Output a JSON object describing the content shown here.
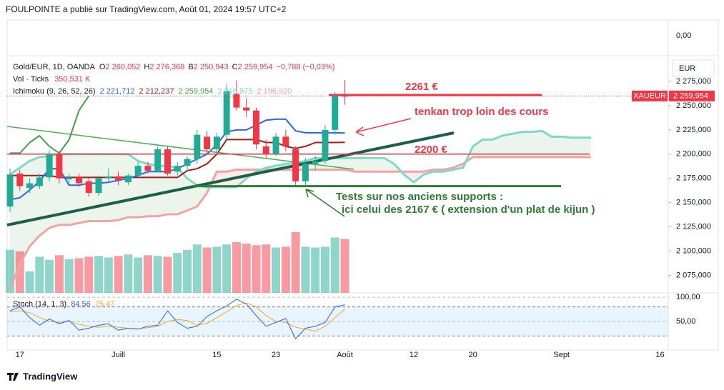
{
  "chart_data": {
    "type": "candlestick",
    "header": "FOULPOINTE a publié sur TradingView.com, Août 01, 2024 19:57 UTC+2",
    "branding": "TradingView",
    "currency": "EUR",
    "symbol_tag": "XAUEUR",
    "top_panel_label": "0,00",
    "legend": {
      "symbol": "Gold/EUR, 1D, OANDA",
      "ohlc": [
        {
          "key": "O",
          "value": "2 260,052"
        },
        {
          "key": "H",
          "value": "2 276,368"
        },
        {
          "key": "B",
          "value": "2 250,943"
        },
        {
          "key": "C",
          "value": "2 259,954"
        }
      ],
      "change": "−0,788 (−0,03%)",
      "volume_label": "Vol · Ticks",
      "volume_value": "350,531 K",
      "ichimoku_label": "Ichimoku (9, 26, 52, 26)",
      "ichimoku_values": [
        "2 221,712",
        "2 212,237",
        "2 259,954",
        "2 216,975",
        "2 196,920"
      ]
    },
    "x": [
      "2024-06-14",
      "2024-06-17",
      "2024-06-18",
      "2024-06-19",
      "2024-06-20",
      "2024-06-21",
      "2024-06-24",
      "2024-06-25",
      "2024-06-26",
      "2024-06-27",
      "2024-06-28",
      "2024-07-01",
      "2024-07-02",
      "2024-07-03",
      "2024-07-04",
      "2024-07-05",
      "2024-07-08",
      "2024-07-09",
      "2024-07-10",
      "2024-07-11",
      "2024-07-12",
      "2024-07-15",
      "2024-07-16",
      "2024-07-17",
      "2024-07-18",
      "2024-07-19",
      "2024-07-22",
      "2024-07-23",
      "2024-07-24",
      "2024-07-25",
      "2024-07-26",
      "2024-07-29",
      "2024-07-30",
      "2024-07-31",
      "2024-08-01"
    ],
    "open": [
      2146,
      2180,
      2165,
      2167,
      2176,
      2200,
      2174,
      2176,
      2172,
      2160,
      2175,
      2177,
      2171,
      2178,
      2188,
      2183,
      2205,
      2182,
      2188,
      2195,
      2218,
      2205,
      2220,
      2262,
      2248,
      2245,
      2208,
      2200,
      2218,
      2205,
      2172,
      2190,
      2193,
      2225,
      2260.052
    ],
    "high": [
      2185,
      2184,
      2175,
      2180,
      2204,
      2203,
      2180,
      2180,
      2175,
      2178,
      2185,
      2182,
      2180,
      2192,
      2192,
      2208,
      2208,
      2192,
      2198,
      2225,
      2224,
      2222,
      2272,
      2276,
      2258,
      2248,
      2215,
      2222,
      2225,
      2208,
      2196,
      2198,
      2230,
      2264,
      2276.368
    ],
    "low": [
      2140,
      2162,
      2160,
      2164,
      2172,
      2170,
      2170,
      2166,
      2156,
      2157,
      2172,
      2168,
      2168,
      2176,
      2180,
      2181,
      2178,
      2178,
      2183,
      2190,
      2200,
      2200,
      2215,
      2245,
      2238,
      2205,
      2195,
      2198,
      2203,
      2168,
      2168,
      2184,
      2190,
      2220,
      2250.943
    ],
    "close": [
      2179,
      2167,
      2170,
      2176,
      2200,
      2175,
      2176,
      2170,
      2160,
      2175,
      2177,
      2173,
      2178,
      2188,
      2183,
      2205,
      2180,
      2188,
      2195,
      2220,
      2205,
      2218,
      2265,
      2248,
      2245,
      2210,
      2200,
      2218,
      2208,
      2172,
      2190,
      2193,
      2225,
      2260,
      2259.954
    ],
    "volume": [
      280,
      270,
      140,
      235,
      215,
      245,
      220,
      225,
      235,
      240,
      230,
      240,
      250,
      230,
      245,
      240,
      235,
      260,
      280,
      315,
      295,
      300,
      315,
      330,
      320,
      310,
      315,
      295,
      300,
      395,
      300,
      295,
      300,
      360,
      350.531
    ],
    "up_color": "#22ab94",
    "down_color": "#f23645",
    "ylim": [
      2057,
      2300
    ],
    "yticks": [
      {
        "value": 2275,
        "label": "2 275,000"
      },
      {
        "value": 2250,
        "label": "2 250,000"
      },
      {
        "value": 2225,
        "label": "2 225,000"
      },
      {
        "value": 2200,
        "label": "2 200,000"
      },
      {
        "value": 2175,
        "label": "2 175,000"
      },
      {
        "value": 2150,
        "label": "2 150,000"
      },
      {
        "value": 2125,
        "label": "2 125,000"
      },
      {
        "value": 2100,
        "label": "2 100,000"
      },
      {
        "value": 2075,
        "label": "2 075,000"
      }
    ],
    "xticks": [
      {
        "value": "2024-06-17",
        "label": "17"
      },
      {
        "value": "2024-07-01",
        "label": "Juill"
      },
      {
        "value": "2024-07-15",
        "label": "15"
      },
      {
        "value": "2024-07-23",
        "label": "23"
      },
      {
        "value": "2024-08-01",
        "label": "Août"
      },
      {
        "value": "2024-08-12",
        "label": "12"
      },
      {
        "value": "2024-08-20",
        "label": "20"
      },
      {
        "value": "2024-09-02",
        "label": "Sept"
      },
      {
        "value": "2024-09-16",
        "label": "16"
      }
    ],
    "grid": false,
    "ichimoku": {
      "x": [
        "2024-06-14",
        "2024-06-17",
        "2024-06-18",
        "2024-06-19",
        "2024-06-20",
        "2024-06-21",
        "2024-06-24",
        "2024-06-25",
        "2024-06-26",
        "2024-06-27",
        "2024-06-28",
        "2024-07-01",
        "2024-07-02",
        "2024-07-03",
        "2024-07-04",
        "2024-07-05",
        "2024-07-08",
        "2024-07-09",
        "2024-07-10",
        "2024-07-11",
        "2024-07-12",
        "2024-07-15",
        "2024-07-16",
        "2024-07-17",
        "2024-07-18",
        "2024-07-19",
        "2024-07-22",
        "2024-07-23",
        "2024-07-24",
        "2024-07-25",
        "2024-07-26",
        "2024-07-29",
        "2024-07-30",
        "2024-07-31",
        "2024-08-01",
        "2024-08-02",
        "2024-08-05",
        "2024-08-06",
        "2024-08-07",
        "2024-08-08",
        "2024-08-09",
        "2024-08-12",
        "2024-08-13",
        "2024-08-14",
        "2024-08-15",
        "2024-08-16",
        "2024-08-19",
        "2024-08-20",
        "2024-08-21",
        "2024-08-22",
        "2024-08-23",
        "2024-08-26",
        "2024-08-27",
        "2024-08-28",
        "2024-08-29",
        "2024-08-30",
        "2024-09-02",
        "2024-09-03",
        "2024-09-04",
        "2024-09-05"
      ],
      "lines": [
        {
          "color": "#2962ff",
          "width": 2,
          "values": [
            2153,
            2155,
            2163,
            2172,
            2185,
            2185,
            2168,
            2168,
            2170,
            2170,
            2171,
            2173,
            2175,
            2178,
            2182,
            2182,
            2182,
            2185,
            2190,
            2195,
            2200,
            2210,
            2223,
            2225,
            2225,
            2230,
            2235,
            2236,
            2236,
            2224,
            2222,
            2222,
            2222,
            2222,
            2221.712,
            null,
            null,
            null,
            null,
            null,
            null,
            null,
            null,
            null,
            null,
            null,
            null,
            null,
            null,
            null,
            null,
            null,
            null,
            null,
            null,
            null,
            null,
            null,
            null,
            null
          ]
        },
        {
          "color": "#a31d1d",
          "width": 2,
          "values": [
            2178,
            2178,
            2178,
            2178,
            2178,
            2176,
            2176,
            2176,
            2176,
            2176,
            2176,
            2176,
            2176,
            2176,
            2176,
            2176,
            2176,
            2176,
            2183,
            2185,
            2190,
            2200,
            2215,
            2215,
            2215,
            2215,
            2212,
            2212,
            2208,
            2206,
            2208,
            2212,
            2212,
            2212,
            2212.237,
            null,
            null,
            null,
            null,
            null,
            null,
            null,
            null,
            null,
            null,
            null,
            null,
            null,
            null,
            null,
            null,
            null,
            null,
            null,
            null,
            null,
            null,
            null,
            null,
            null
          ]
        },
        {
          "color": "#43a047",
          "width": 2,
          "values": [
            2201,
            2201,
            2212,
            2219,
            2208,
            2201,
            2215,
            2245,
            2259.954,
            null,
            null,
            null,
            null,
            null,
            null,
            null,
            null,
            null,
            null,
            null,
            null,
            null,
            null,
            null,
            null,
            null,
            null,
            null,
            null,
            null,
            null,
            null,
            null,
            null,
            null,
            null,
            null,
            null,
            null,
            null,
            null,
            null,
            null,
            null,
            null,
            null,
            null,
            null,
            null,
            null,
            null,
            null,
            null,
            null,
            null,
            null,
            null,
            null,
            null,
            null
          ]
        },
        {
          "color": "#7fd8c9",
          "width": 3,
          "values": [
            2179,
            2186,
            2193,
            2197,
            2198,
            2200,
            2200,
            2200,
            2200,
            2200,
            2200,
            2200,
            2200,
            2193,
            2190,
            2188,
            2188,
            2186,
            2175,
            2168,
            2166,
            2166,
            2166,
            2166,
            2175,
            2182,
            2186,
            2188,
            2190,
            2191,
            2193,
            2196,
            2196,
            2196,
            2196,
            2196,
            2196,
            2196,
            2196,
            2190,
            2179,
            2171,
            2179,
            2182,
            2182,
            2184,
            2186,
            2208,
            2215,
            2215,
            2219,
            2221,
            2223,
            2223,
            2224,
            2218,
            2218,
            2217,
            2217,
            2216.975
          ]
        },
        {
          "color": "#f2a3a3",
          "width": 3,
          "values": [
            2061,
            2087,
            2105,
            2116,
            2124,
            2127,
            2127,
            2129,
            2131,
            2131,
            2131,
            2132,
            2135,
            2135,
            2136,
            2136,
            2138,
            2138,
            2142,
            2146,
            2160,
            2182,
            2182,
            2184,
            2184,
            2184,
            2184,
            2184,
            2184,
            2184,
            2184,
            2184,
            2184,
            2184,
            2184,
            2182,
            2182,
            2182,
            2182,
            2182,
            2182,
            2182,
            2182,
            2184,
            2184,
            2186,
            2190,
            2197,
            2197,
            2197,
            2197,
            2197,
            2197,
            2197,
            2197,
            2197,
            2197,
            2197,
            2197,
            2196.92
          ]
        }
      ],
      "cloud_up_color": "rgba(67,160,71,0.10)",
      "cloud_down_color": "rgba(244,67,54,0.10)"
    },
    "stoch": {
      "label": "Stoch (14, 1, 3)",
      "k_label": "84,56",
      "d_label": "75,47",
      "ylim": [
        -9,
        109
      ],
      "yticks": [
        {
          "value": 100,
          "label": "100,00"
        },
        {
          "value": 50,
          "label": "50,00"
        }
      ],
      "band": [
        20,
        80
      ],
      "band_color": "rgba(33,150,243,0.10)",
      "k": {
        "color": "#2962ff",
        "values": [
          72,
          80,
          58,
          42,
          55,
          45,
          52,
          32,
          36,
          42,
          45,
          32,
          36,
          34,
          40,
          42,
          72,
          48,
          36,
          40,
          60,
          72,
          82,
          96,
          86,
          62,
          40,
          48,
          56,
          14,
          36,
          40,
          48,
          80,
          84.56
        ]
      },
      "d": {
        "color": "#f5a623",
        "values": [
          70,
          72,
          68,
          58,
          50,
          48,
          50,
          44,
          40,
          38,
          40,
          38,
          36,
          35,
          37,
          40,
          50,
          54,
          52,
          42,
          46,
          58,
          70,
          83,
          88,
          80,
          62,
          50,
          48,
          38,
          34,
          30,
          40,
          58,
          75.47
        ]
      }
    },
    "annotations": [
      {
        "text": "2261 €",
        "level": 2261
      },
      {
        "text": "2200 €",
        "level": 2200
      },
      {
        "text": "tenkan trop loin des cours"
      },
      {
        "text": "Tests sur nos anciens supports :"
      },
      {
        "text": "ici celui des 2167 € ( extension d'un plat de kijun )",
        "level": 2167
      }
    ]
  }
}
